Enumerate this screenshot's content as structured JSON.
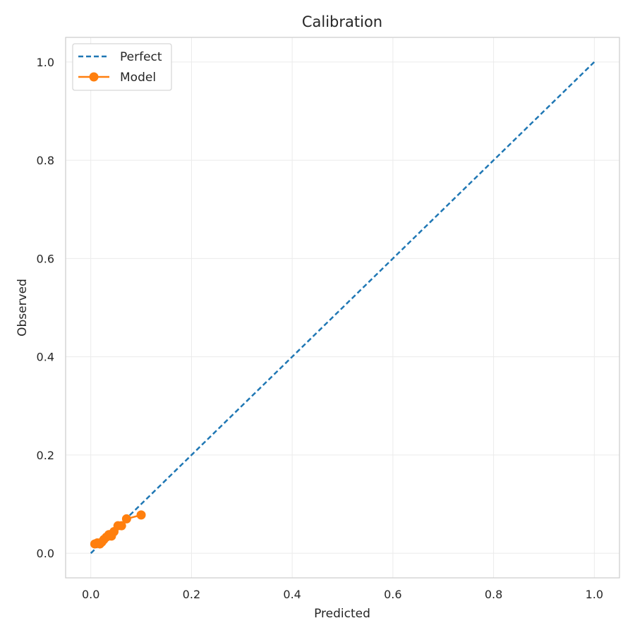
{
  "chart_data": {
    "type": "line",
    "title": "Calibration",
    "xlabel": "Predicted",
    "ylabel": "Observed",
    "xlim": [
      -0.05,
      1.05
    ],
    "ylim": [
      -0.05,
      1.05
    ],
    "xticks": [
      0.0,
      0.2,
      0.4,
      0.6,
      0.8,
      1.0
    ],
    "yticks": [
      0.0,
      0.2,
      0.4,
      0.6,
      0.8,
      1.0
    ],
    "xtick_labels": [
      "0.0",
      "0.2",
      "0.4",
      "0.6",
      "0.8",
      "1.0"
    ],
    "ytick_labels": [
      "0.0",
      "0.2",
      "0.4",
      "0.6",
      "0.8",
      "1.0"
    ],
    "grid": true,
    "legend_position": "top-left",
    "series": [
      {
        "name": "Perfect",
        "style": "dashed",
        "color": "#1f77b4",
        "x": [
          0.0,
          1.0
        ],
        "y": [
          0.0,
          1.0
        ]
      },
      {
        "name": "Model",
        "style": "line-marker",
        "color": "#ff7f0e",
        "x": [
          0.008,
          0.013,
          0.018,
          0.022,
          0.026,
          0.031,
          0.036,
          0.041,
          0.046,
          0.054,
          0.061,
          0.071,
          0.1
        ],
        "y": [
          0.019,
          0.021,
          0.019,
          0.023,
          0.028,
          0.033,
          0.038,
          0.035,
          0.044,
          0.056,
          0.056,
          0.07,
          0.078
        ]
      }
    ]
  }
}
